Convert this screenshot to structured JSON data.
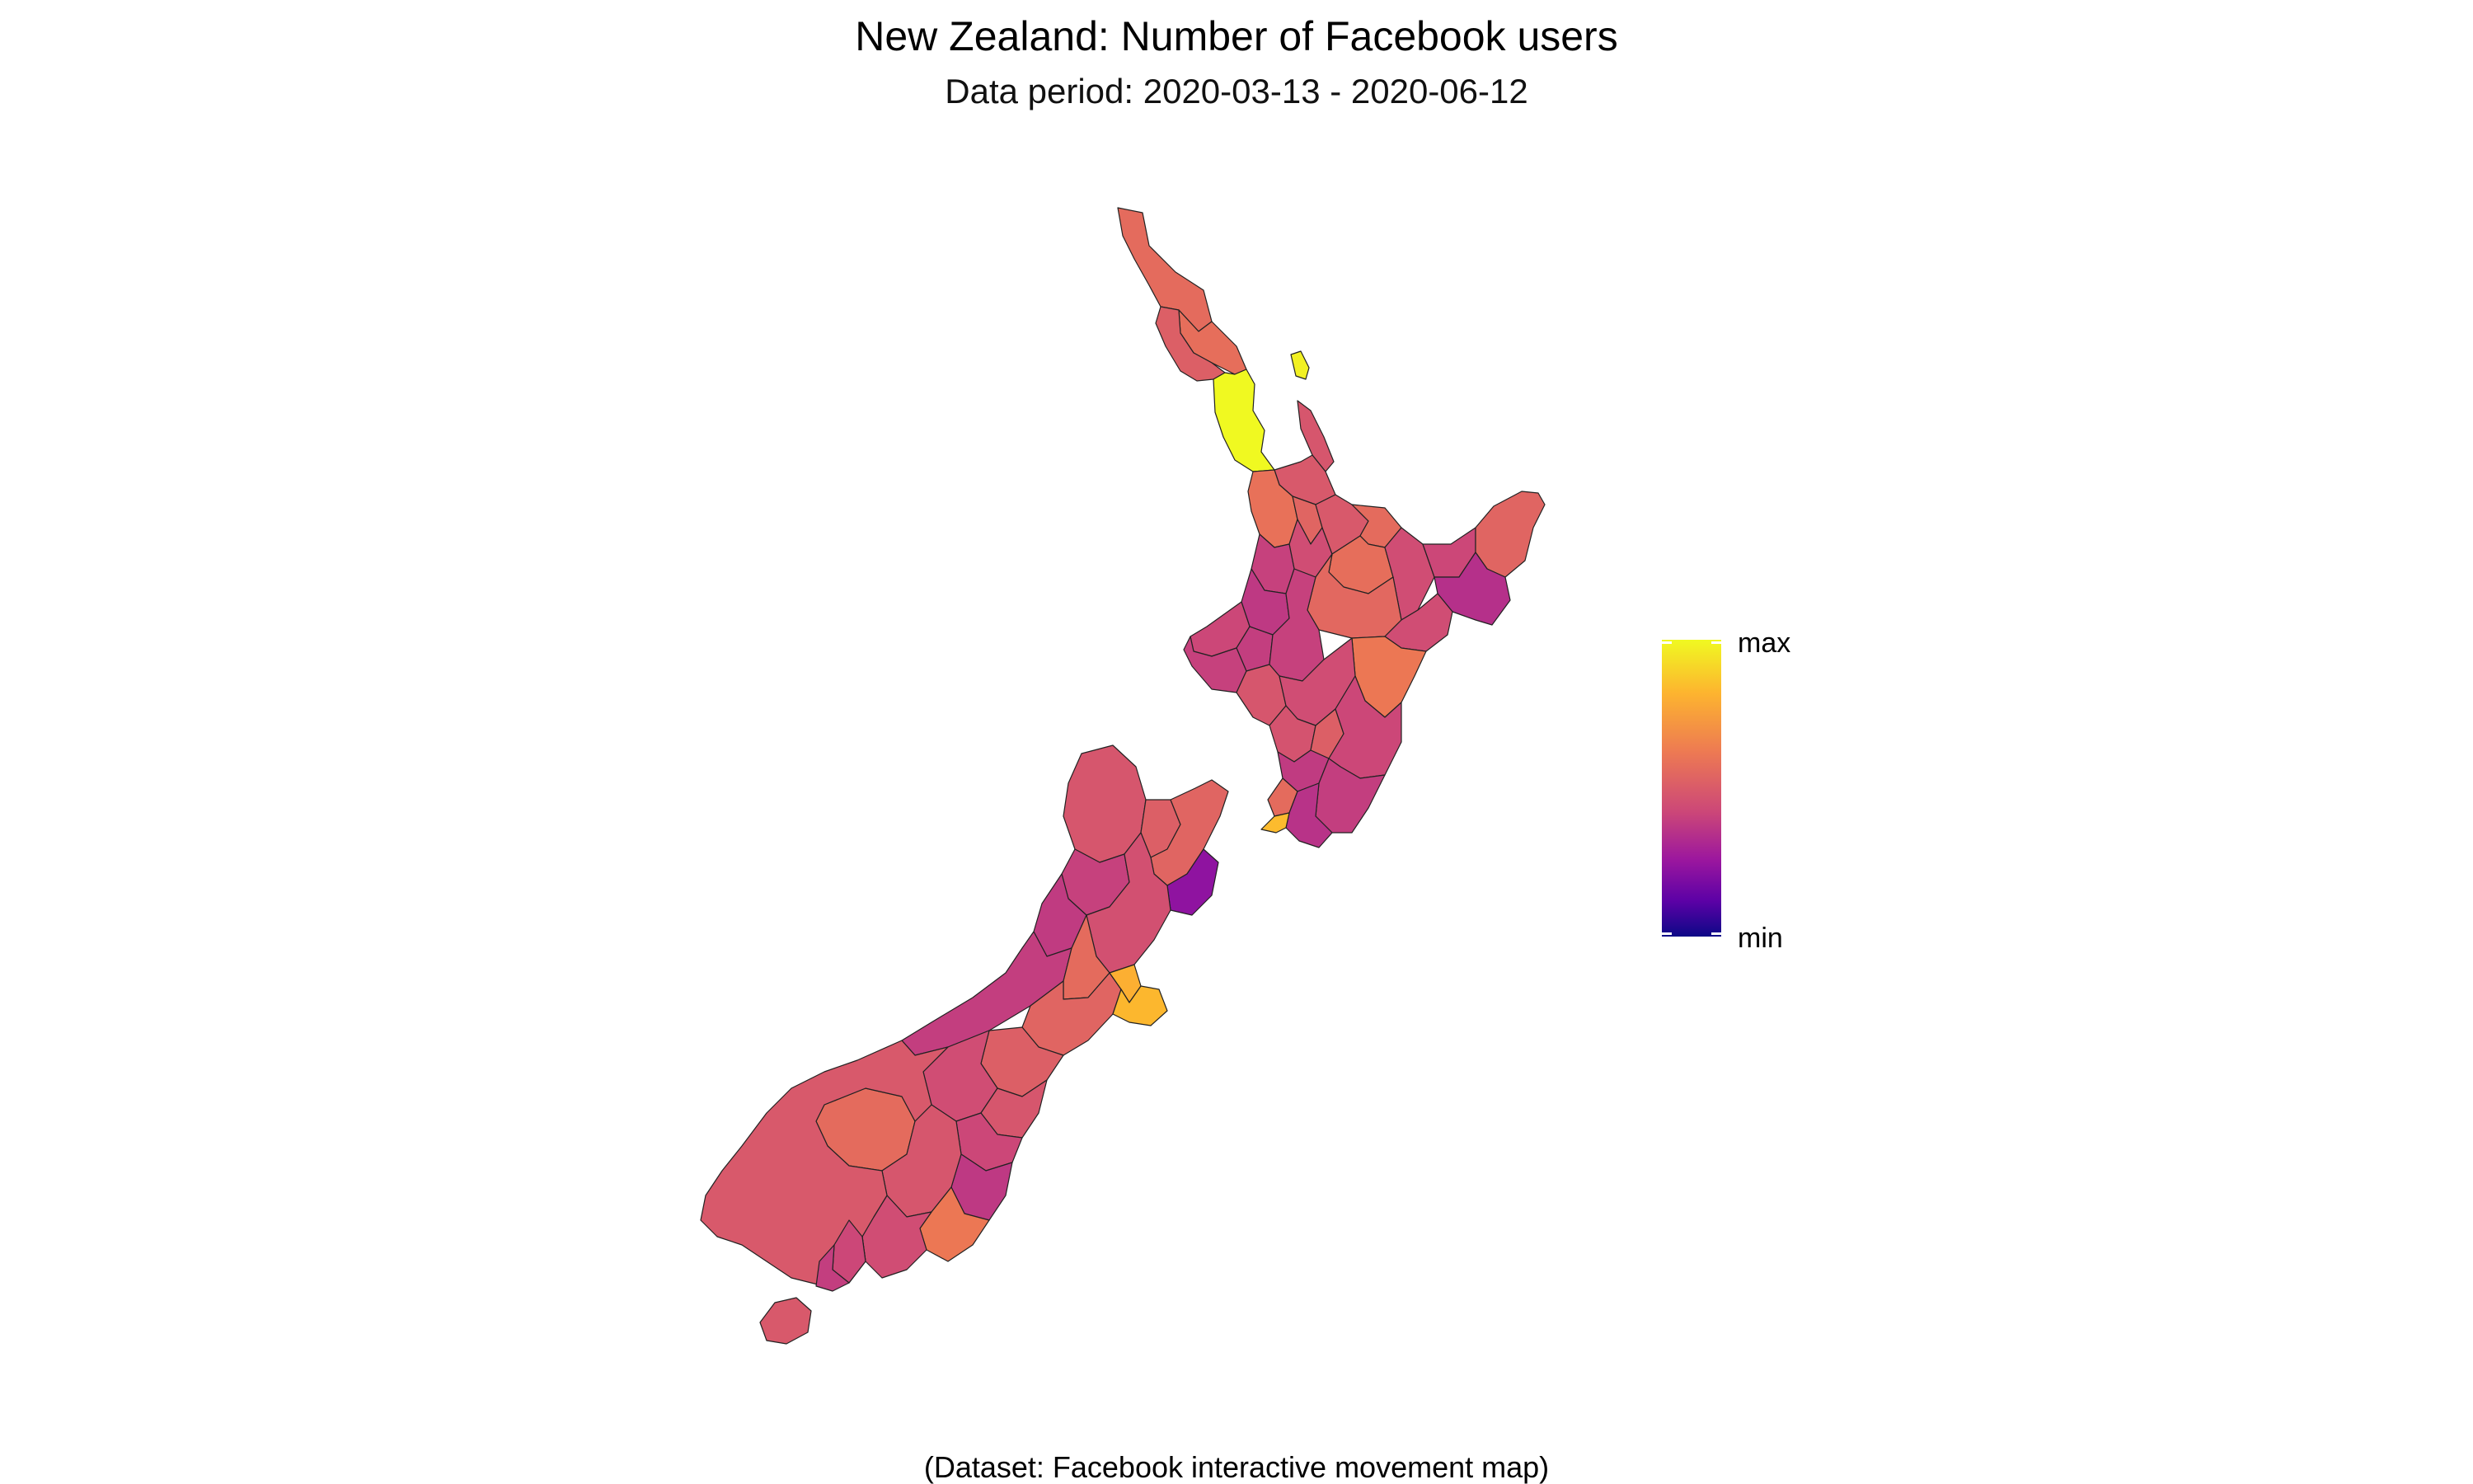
{
  "title": "New Zealand: Number of Facebook users",
  "subtitle": "Data period: 2020-03-13 - 2020-06-12",
  "caption": "(Dataset: Facebook interactive movement map)",
  "legend": {
    "max_label": "max",
    "min_label": "min",
    "colors": [
      "#0d0887",
      "#5c01a6",
      "#9c179e",
      "#cc4778",
      "#ed7953",
      "#fdb42f",
      "#f0f921"
    ]
  },
  "map_data": {
    "regions": [
      {
        "id": "far-north",
        "level": 0.62
      },
      {
        "id": "whangarei",
        "level": 0.63
      },
      {
        "id": "kaipara",
        "level": 0.58
      },
      {
        "id": "auckland",
        "level": 1.0
      },
      {
        "id": "great-barrier",
        "level": 0.98
      },
      {
        "id": "coromandel",
        "level": 0.55
      },
      {
        "id": "hauraki",
        "level": 0.56
      },
      {
        "id": "waikato",
        "level": 0.64
      },
      {
        "id": "hamilton",
        "level": 0.6
      },
      {
        "id": "waipa",
        "level": 0.52
      },
      {
        "id": "bay-of-plenty-west",
        "level": 0.56
      },
      {
        "id": "tauranga",
        "level": 0.62
      },
      {
        "id": "rotorua",
        "level": 0.63
      },
      {
        "id": "whakatane",
        "level": 0.52
      },
      {
        "id": "opotiki",
        "level": 0.5
      },
      {
        "id": "east-cape",
        "level": 0.6
      },
      {
        "id": "gisborne",
        "level": 0.42
      },
      {
        "id": "otorohanga",
        "level": 0.48
      },
      {
        "id": "waitomo",
        "level": 0.45
      },
      {
        "id": "taupo",
        "level": 0.61
      },
      {
        "id": "wairoa",
        "level": 0.52
      },
      {
        "id": "new-plymouth",
        "level": 0.5
      },
      {
        "id": "stratford",
        "level": 0.47
      },
      {
        "id": "south-taranaki",
        "level": 0.48
      },
      {
        "id": "ruapehu",
        "level": 0.48
      },
      {
        "id": "napier-hastings",
        "level": 0.66
      },
      {
        "id": "whanganui",
        "level": 0.55
      },
      {
        "id": "rangitikei",
        "level": 0.52
      },
      {
        "id": "manawatu",
        "level": 0.54
      },
      {
        "id": "palmerston-north",
        "level": 0.58
      },
      {
        "id": "tararua",
        "level": 0.5
      },
      {
        "id": "horowhenua",
        "level": 0.46
      },
      {
        "id": "kapiti",
        "level": 0.62
      },
      {
        "id": "wairarapa",
        "level": 0.47
      },
      {
        "id": "wellington",
        "level": 0.43
      },
      {
        "id": "wellington-city",
        "level": 0.85
      },
      {
        "id": "tasman",
        "level": 0.55
      },
      {
        "id": "nelson",
        "level": 0.58
      },
      {
        "id": "marlborough",
        "level": 0.6
      },
      {
        "id": "kaikoura",
        "level": 0.3
      },
      {
        "id": "buller",
        "level": 0.48
      },
      {
        "id": "grey",
        "level": 0.46
      },
      {
        "id": "westland",
        "level": 0.47
      },
      {
        "id": "hurunui",
        "level": 0.53
      },
      {
        "id": "waimakariri",
        "level": 0.62
      },
      {
        "id": "selwyn",
        "level": 0.6
      },
      {
        "id": "christchurch",
        "level": 0.82
      },
      {
        "id": "banks-peninsula",
        "level": 0.84
      },
      {
        "id": "ashburton",
        "level": 0.58
      },
      {
        "id": "mackenzie",
        "level": 0.52
      },
      {
        "id": "timaru",
        "level": 0.55
      },
      {
        "id": "waimate",
        "level": 0.5
      },
      {
        "id": "waitaki",
        "level": 0.45
      },
      {
        "id": "queenstown",
        "level": 0.62
      },
      {
        "id": "central-otago",
        "level": 0.55
      },
      {
        "id": "dunedin",
        "level": 0.66
      },
      {
        "id": "clutha",
        "level": 0.52
      },
      {
        "id": "southland",
        "level": 0.56
      },
      {
        "id": "gore",
        "level": 0.5
      },
      {
        "id": "invercargill",
        "level": 0.47
      },
      {
        "id": "stewart-island",
        "level": 0.56
      }
    ]
  }
}
